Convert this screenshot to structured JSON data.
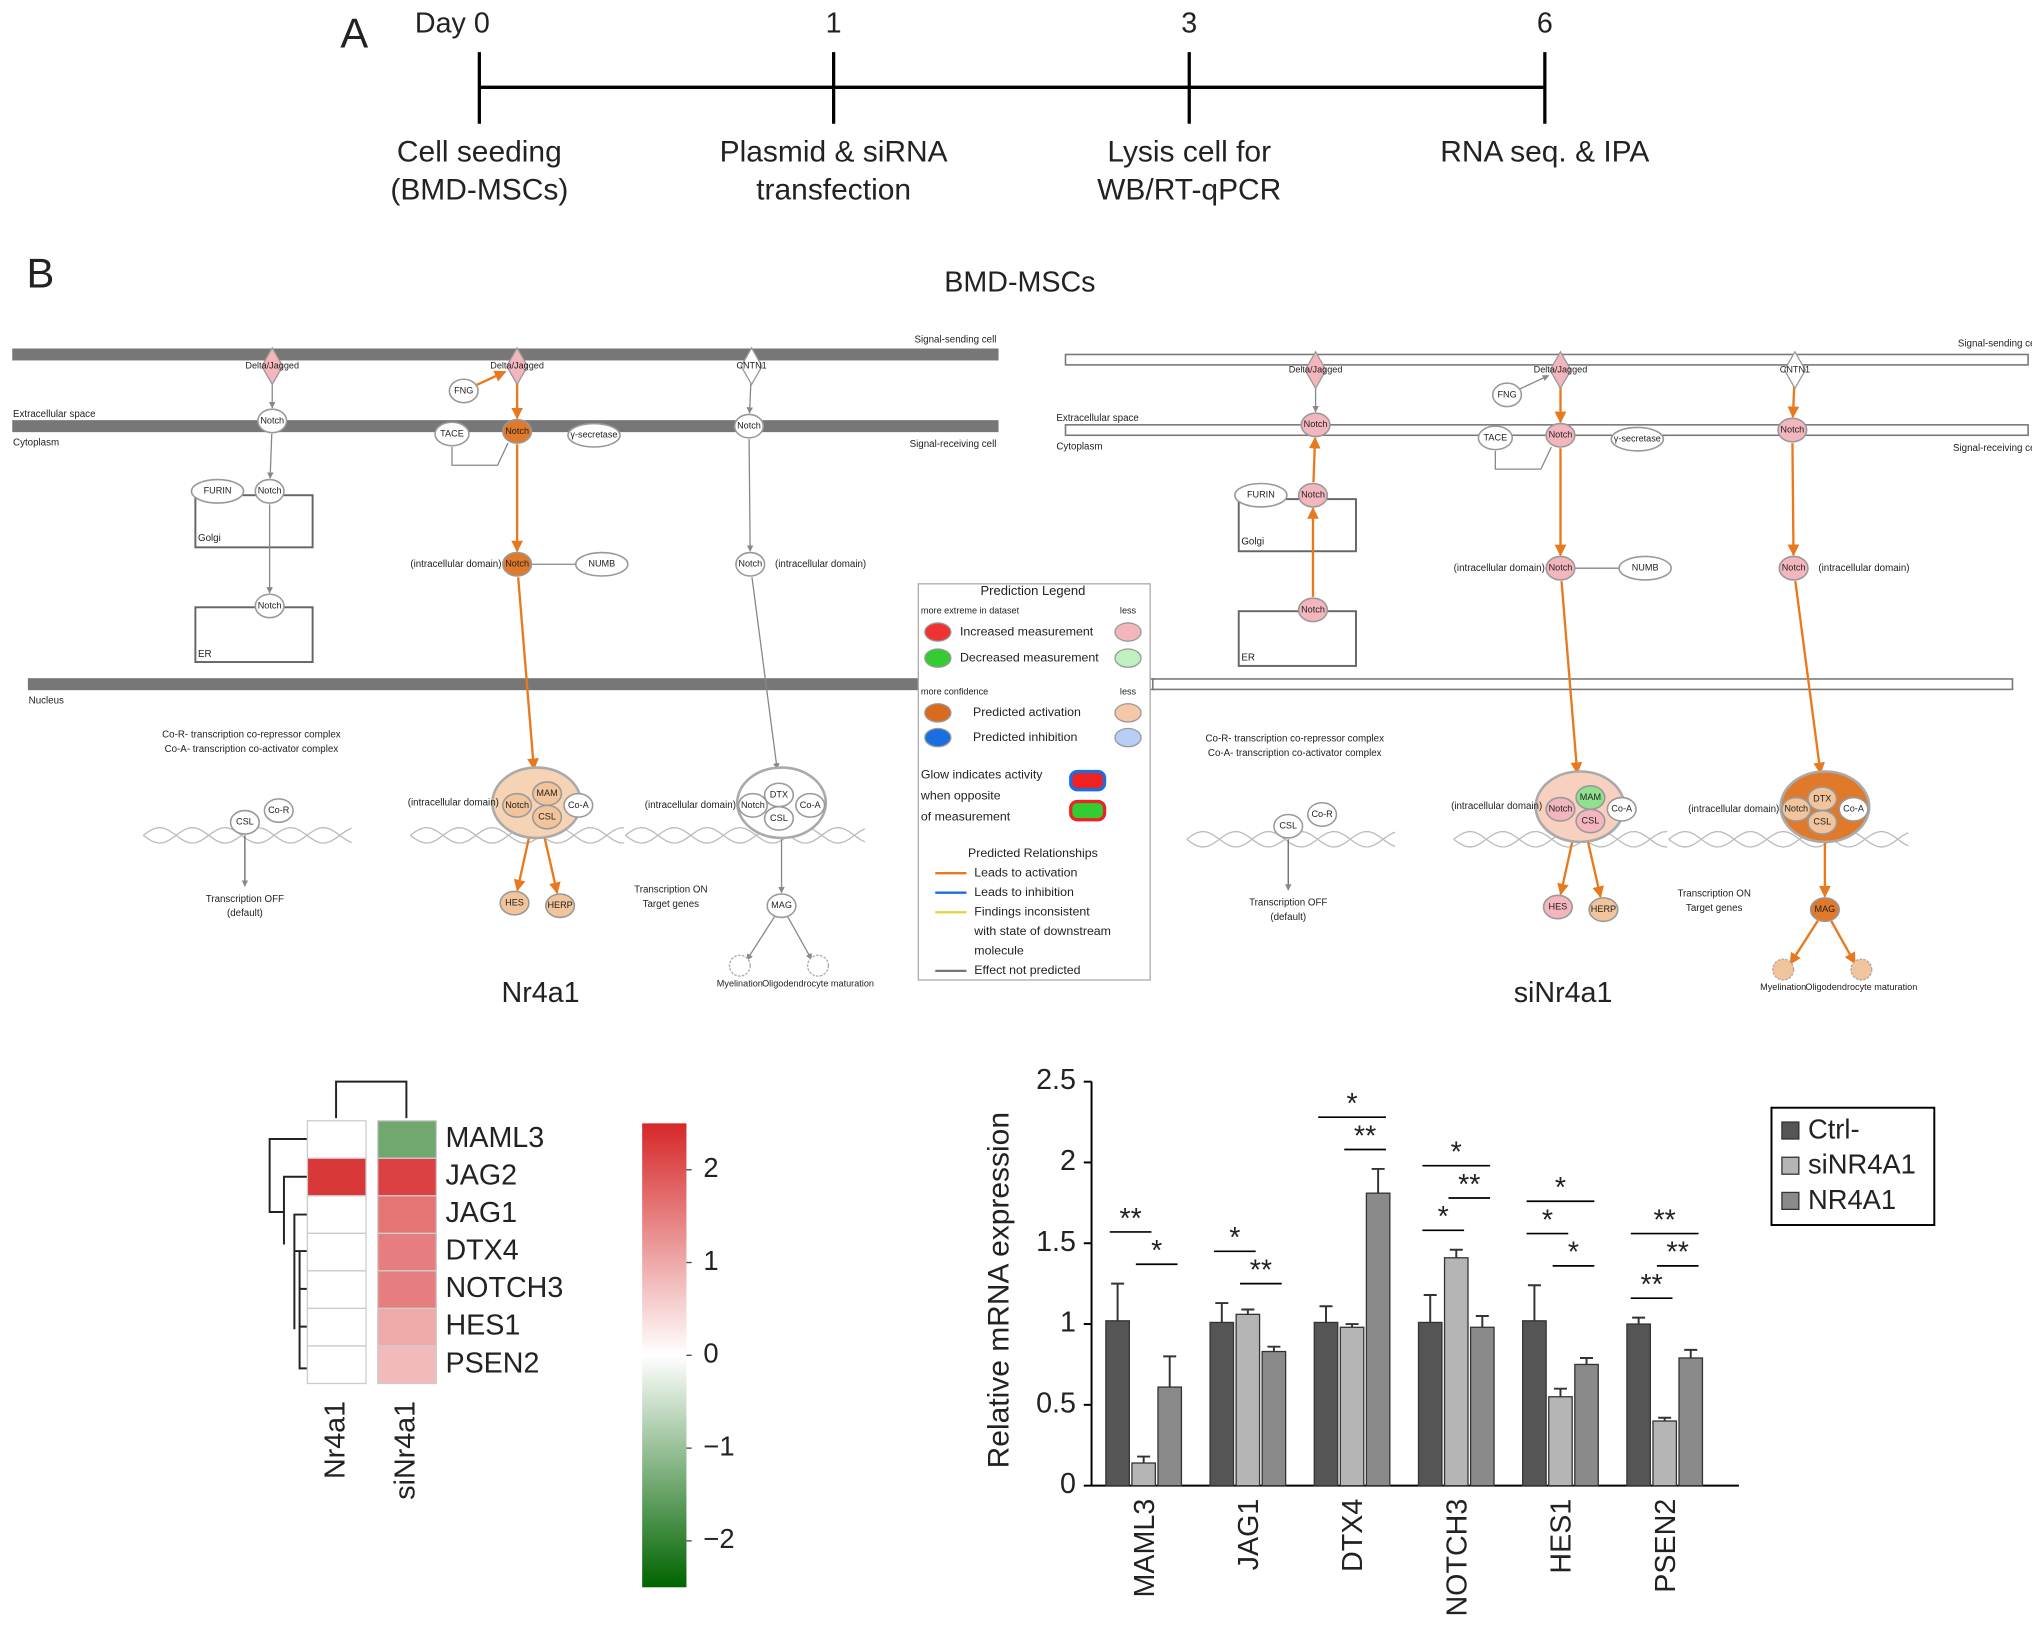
{
  "panel_a": {
    "label": "A",
    "days": [
      "Day 0",
      "1",
      "3",
      "6"
    ],
    "events": [
      [
        "Cell seeding",
        "(BMD-MSCs)"
      ],
      [
        "Plasmid & siRNA",
        "transfection"
      ],
      [
        "Lysis cell for",
        "WB/RT-qPCR"
      ],
      [
        "RNA seq. & IPA"
      ]
    ]
  },
  "panel_b": {
    "label": "B",
    "title": "BMD-MSCs",
    "pathway": {
      "nodes": [
        "Delta/Jagged",
        "Delta/Jagged",
        "CNTN1",
        "FNG",
        "Notch",
        "Notch",
        "Notch",
        "TACE",
        "γ-secretase",
        "FURIN",
        "Notch",
        "Notch",
        "Notch",
        "NUMB",
        "Notch",
        "CSL",
        "Co-R",
        "",
        "",
        "HES",
        "HERP",
        "MAG",
        "Myelination",
        "Oligodendrocyte maturation",
        "Notch",
        "MAM",
        "Co-A",
        "CSL",
        "Notch",
        "DTX",
        "Co-A",
        "CSL"
      ],
      "texts": [
        "Signal-sending cell",
        "Extracellular space",
        "Cytoplasm",
        "Signal-receiving cell",
        "Golgi",
        "ER",
        "Nucleus",
        "Co-R- transcription co-repressor complex",
        "Co-A- transcription co-activator complex",
        "(intracellular domain)",
        "(intracellular domain)",
        "Transcription OFF",
        "(default)",
        "Transcription ON",
        "Target genes",
        "(intracellular domain)",
        "(intracellular domain)"
      ],
      "diagrams": [
        {
          "caption": "Nr4a1",
          "fills": [
            "#f4b6bd",
            "#f4b6bd",
            "#ffffff",
            "#ffffff",
            "#ffffff",
            "#e07a2a",
            "#ffffff",
            "#ffffff",
            "#ffffff",
            "#ffffff",
            "#ffffff",
            "#ffffff",
            "#e07a2a",
            "#ffffff",
            "#ffffff",
            "#ffffff",
            "#ffffff",
            "#f6d3b4",
            "#ffffff",
            "#f2c49b",
            "#f2c49b",
            "#ffffff",
            "#ffffff",
            "#ffffff",
            "#f2c49b",
            "#f2c49b",
            "#ffffff",
            "#f2c49b",
            "#ffffff",
            "#ffffff",
            "#ffffff",
            "#ffffff"
          ]
        },
        {
          "caption": "siNr4a1",
          "fills": [
            "#f4b6bd",
            "#f4b6bd",
            "#ffffff",
            "#ffffff",
            "#f4b6bd",
            "#f4b6bd",
            "#f4b6bd",
            "#ffffff",
            "#ffffff",
            "#ffffff",
            "#f4b6bd",
            "#f4b6bd",
            "#f4b6bd",
            "#ffffff",
            "#f4b6bd",
            "#ffffff",
            "#ffffff",
            "#f8d0c0",
            "#e07a2a",
            "#f4b6bd",
            "#f2c49b",
            "#e07a2a",
            "#f2c49b",
            "#f2c49b",
            "#f4b6bd",
            "#8fe08f",
            "#ffffff",
            "#f4b6bd",
            "#f2c49b",
            "#f2c49b",
            "#ffffff",
            "#f2c49b"
          ]
        }
      ]
    },
    "legend": {
      "texts": [
        "Prediction Legend",
        "more extreme in dataset",
        "less",
        "Increased measurement",
        "Decreased measurement",
        "more confidence",
        "less",
        "Predicted activation",
        "Predicted inhibition",
        "Glow indicates activity",
        "when opposite",
        "of measurement",
        "Predicted Relationships",
        "Leads to activation",
        "Leads to inhibition",
        "Findings inconsistent",
        "with state of downstream",
        "molecule",
        "Effect not predicted"
      ]
    }
  },
  "chart_data": [
    {
      "type": "heatmap",
      "rows": [
        "MAML3",
        "JAG2",
        "JAG1",
        "DTX4",
        "NOTCH3",
        "HES1",
        "PSEN2"
      ],
      "columns": [
        "Nr4a1",
        "siNr4a1"
      ],
      "values": [
        [
          0,
          -1.4
        ],
        [
          2.3,
          2.2
        ],
        [
          0,
          1.6
        ],
        [
          0,
          1.5
        ],
        [
          0,
          1.5
        ],
        [
          0,
          1.0
        ],
        [
          0,
          0.8
        ]
      ],
      "clim": [
        -2.5,
        2.5
      ],
      "colorbar_ticks": [
        2,
        1,
        0,
        {
          "value": -1,
          "label": "−1"
        },
        {
          "value": -2,
          "label": "−2"
        }
      ],
      "colormap": [
        "#006400",
        "#ffffff",
        "#d62728"
      ]
    },
    {
      "type": "bar",
      "y_label": "Relative mRNA expression",
      "categories": [
        "MAML3",
        "JAG1",
        "DTX4",
        "NOTCH3",
        "HES1",
        "PSEN2"
      ],
      "series": [
        {
          "name": "Ctrl-",
          "color": "#555555",
          "values": [
            1.02,
            1.01,
            1.01,
            1.01,
            1.02,
            1.0
          ],
          "errors": [
            0.23,
            0.12,
            0.1,
            0.17,
            0.22,
            0.04
          ]
        },
        {
          "name": "siNR4A1",
          "color": "#b5b5b5",
          "values": [
            0.14,
            1.06,
            0.98,
            1.41,
            0.55,
            0.4
          ],
          "errors": [
            0.04,
            0.03,
            0.02,
            0.05,
            0.05,
            0.02
          ]
        },
        {
          "name": "NR4A1",
          "color": "#8a8a8a",
          "values": [
            0.61,
            0.83,
            1.81,
            0.98,
            0.75,
            0.79
          ],
          "errors": [
            0.19,
            0.03,
            0.15,
            0.07,
            0.04,
            0.05
          ]
        }
      ],
      "ylim": [
        0,
        2.5
      ],
      "yticks": [
        0,
        0.5,
        1,
        1.5,
        2,
        2.5
      ],
      "annotations": [
        {
          "category": 0,
          "from": 0,
          "to": 1,
          "label": "**"
        },
        {
          "category": 0,
          "from": 1,
          "to": 2,
          "label": "*"
        },
        {
          "category": 1,
          "from": 0,
          "to": 1,
          "label": "*"
        },
        {
          "category": 1,
          "from": 1,
          "to": 2,
          "label": "**"
        },
        {
          "category": 2,
          "from": 0,
          "to": 2,
          "label": "*"
        },
        {
          "category": 2,
          "from": 1,
          "to": 2,
          "label": "**"
        },
        {
          "category": 3,
          "from": 0,
          "to": 2,
          "label": "*"
        },
        {
          "category": 3,
          "from": 1,
          "to": 2,
          "label": "**"
        },
        {
          "category": 3,
          "from": 0,
          "to": 1,
          "label": "*"
        },
        {
          "category": 4,
          "from": 0,
          "to": 2,
          "label": "*"
        },
        {
          "category": 4,
          "from": 0,
          "to": 1,
          "label": "*"
        },
        {
          "category": 4,
          "from": 1,
          "to": 2,
          "label": "*"
        },
        {
          "category": 5,
          "from": 0,
          "to": 2,
          "label": "**"
        },
        {
          "category": 5,
          "from": 1,
          "to": 2,
          "label": "**"
        },
        {
          "category": 5,
          "from": 0,
          "to": 1,
          "label": "**"
        }
      ]
    }
  ]
}
